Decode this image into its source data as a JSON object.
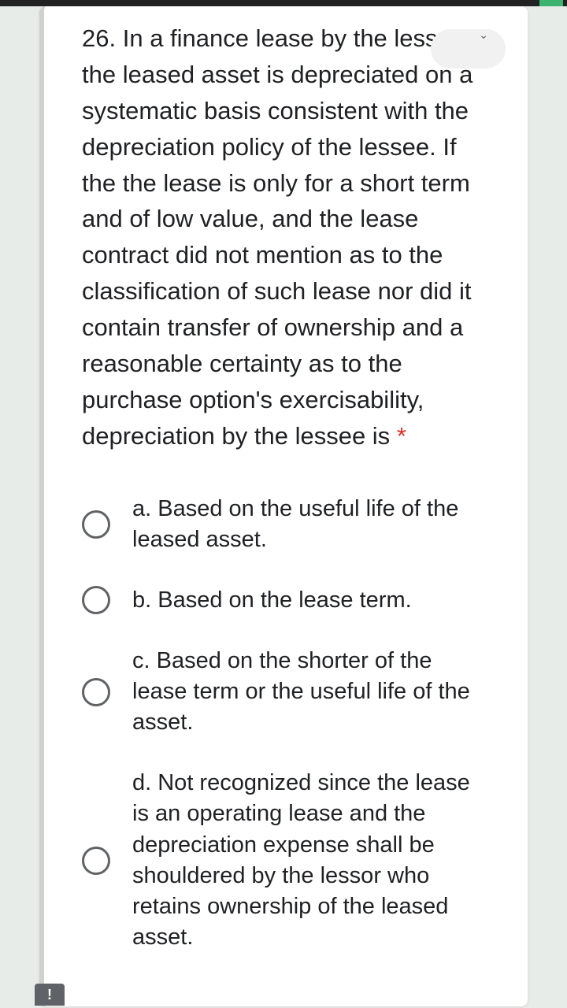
{
  "question": {
    "number": "26.",
    "text": "In a finance lease by the lessee, the leased asset is depreciated on a systematic basis consistent with the depreciation policy of the lessee. If the the lease is only for a short term and of low value, and the lease contract did not mention as to the classification of such lease nor did it contain transfer of ownership and a reasonable certainty as to the purchase option's exercisability, depreciation by the lessee is",
    "required_mark": "*"
  },
  "options": [
    {
      "label": "a. Based on the useful life of the leased asset."
    },
    {
      "label": "b. Based on the lease term."
    },
    {
      "label": "c. Based on the shorter of the lease term or the useful life of the asset."
    },
    {
      "label": "d. Not recognized since the lease is an operating lease and the depreciation expense shall be shouldered by the lessor who retains ownership of the leased asset."
    }
  ],
  "feedback_icon": "!",
  "caret_icon": "⌄"
}
